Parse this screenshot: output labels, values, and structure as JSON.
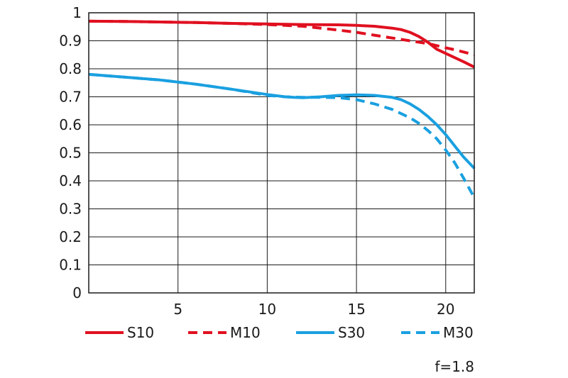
{
  "chart_data": {
    "type": "line",
    "xlim": [
      0,
      21.6
    ],
    "ylim": [
      0,
      1
    ],
    "xticks": [
      5,
      10,
      15,
      20
    ],
    "xtick_labels": [
      "5",
      "10",
      "15",
      "20"
    ],
    "yticks": [
      0,
      0.1,
      0.2,
      0.3,
      0.4,
      0.5,
      0.6,
      0.7,
      0.8,
      0.9,
      1
    ],
    "ytick_labels": [
      "0",
      "0.1",
      "0.2",
      "0.3",
      "0.4",
      "0.5",
      "0.6",
      "0.7",
      "0.8",
      "0.9",
      "1"
    ],
    "grid": true,
    "legend_position": "bottom",
    "annotation": "f=1.8",
    "series": [
      {
        "name": "S10",
        "color": "#e01020",
        "style": "solid",
        "points": [
          [
            0,
            0.97
          ],
          [
            2,
            0.969
          ],
          [
            4,
            0.967
          ],
          [
            6,
            0.965
          ],
          [
            8,
            0.962
          ],
          [
            10,
            0.96
          ],
          [
            12,
            0.958
          ],
          [
            14,
            0.957
          ],
          [
            15,
            0.955
          ],
          [
            16,
            0.952
          ],
          [
            17,
            0.945
          ],
          [
            17.5,
            0.94
          ],
          [
            18,
            0.93
          ],
          [
            18.5,
            0.915
          ],
          [
            19,
            0.895
          ],
          [
            19.5,
            0.87
          ],
          [
            20,
            0.855
          ],
          [
            20.5,
            0.84
          ],
          [
            21,
            0.825
          ],
          [
            21.6,
            0.806
          ]
        ]
      },
      {
        "name": "M10",
        "color": "#e01020",
        "style": "dashed",
        "points": [
          [
            0,
            0.97
          ],
          [
            2,
            0.969
          ],
          [
            4,
            0.967
          ],
          [
            6,
            0.965
          ],
          [
            8,
            0.962
          ],
          [
            10,
            0.958
          ],
          [
            11,
            0.955
          ],
          [
            12,
            0.952
          ],
          [
            13,
            0.945
          ],
          [
            14,
            0.938
          ],
          [
            15,
            0.93
          ],
          [
            16,
            0.92
          ],
          [
            17,
            0.91
          ],
          [
            18,
            0.9
          ],
          [
            19,
            0.89
          ],
          [
            20,
            0.875
          ],
          [
            20.5,
            0.868
          ],
          [
            21,
            0.86
          ],
          [
            21.6,
            0.85
          ]
        ]
      },
      {
        "name": "S30",
        "color": "#1aa0e0",
        "style": "solid",
        "points": [
          [
            0,
            0.78
          ],
          [
            2,
            0.77
          ],
          [
            4,
            0.76
          ],
          [
            6,
            0.745
          ],
          [
            8,
            0.727
          ],
          [
            10,
            0.708
          ],
          [
            11,
            0.7
          ],
          [
            11.5,
            0.698
          ],
          [
            12,
            0.697
          ],
          [
            13,
            0.7
          ],
          [
            14,
            0.705
          ],
          [
            15,
            0.707
          ],
          [
            16,
            0.705
          ],
          [
            17,
            0.698
          ],
          [
            17.5,
            0.69
          ],
          [
            18,
            0.675
          ],
          [
            18.5,
            0.655
          ],
          [
            19,
            0.63
          ],
          [
            19.5,
            0.6
          ],
          [
            20,
            0.565
          ],
          [
            20.5,
            0.525
          ],
          [
            21,
            0.485
          ],
          [
            21.6,
            0.445
          ]
        ]
      },
      {
        "name": "M30",
        "color": "#1aa0e0",
        "style": "dashed",
        "points": [
          [
            0,
            0.78
          ],
          [
            2,
            0.77
          ],
          [
            4,
            0.76
          ],
          [
            6,
            0.745
          ],
          [
            8,
            0.727
          ],
          [
            10,
            0.705
          ],
          [
            11,
            0.7
          ],
          [
            12,
            0.698
          ],
          [
            13,
            0.698
          ],
          [
            14,
            0.697
          ],
          [
            15,
            0.69
          ],
          [
            16,
            0.675
          ],
          [
            17,
            0.655
          ],
          [
            18,
            0.625
          ],
          [
            18.5,
            0.605
          ],
          [
            19,
            0.58
          ],
          [
            19.5,
            0.55
          ],
          [
            20,
            0.51
          ],
          [
            20.5,
            0.465
          ],
          [
            21,
            0.41
          ],
          [
            21.6,
            0.34
          ]
        ]
      }
    ]
  }
}
